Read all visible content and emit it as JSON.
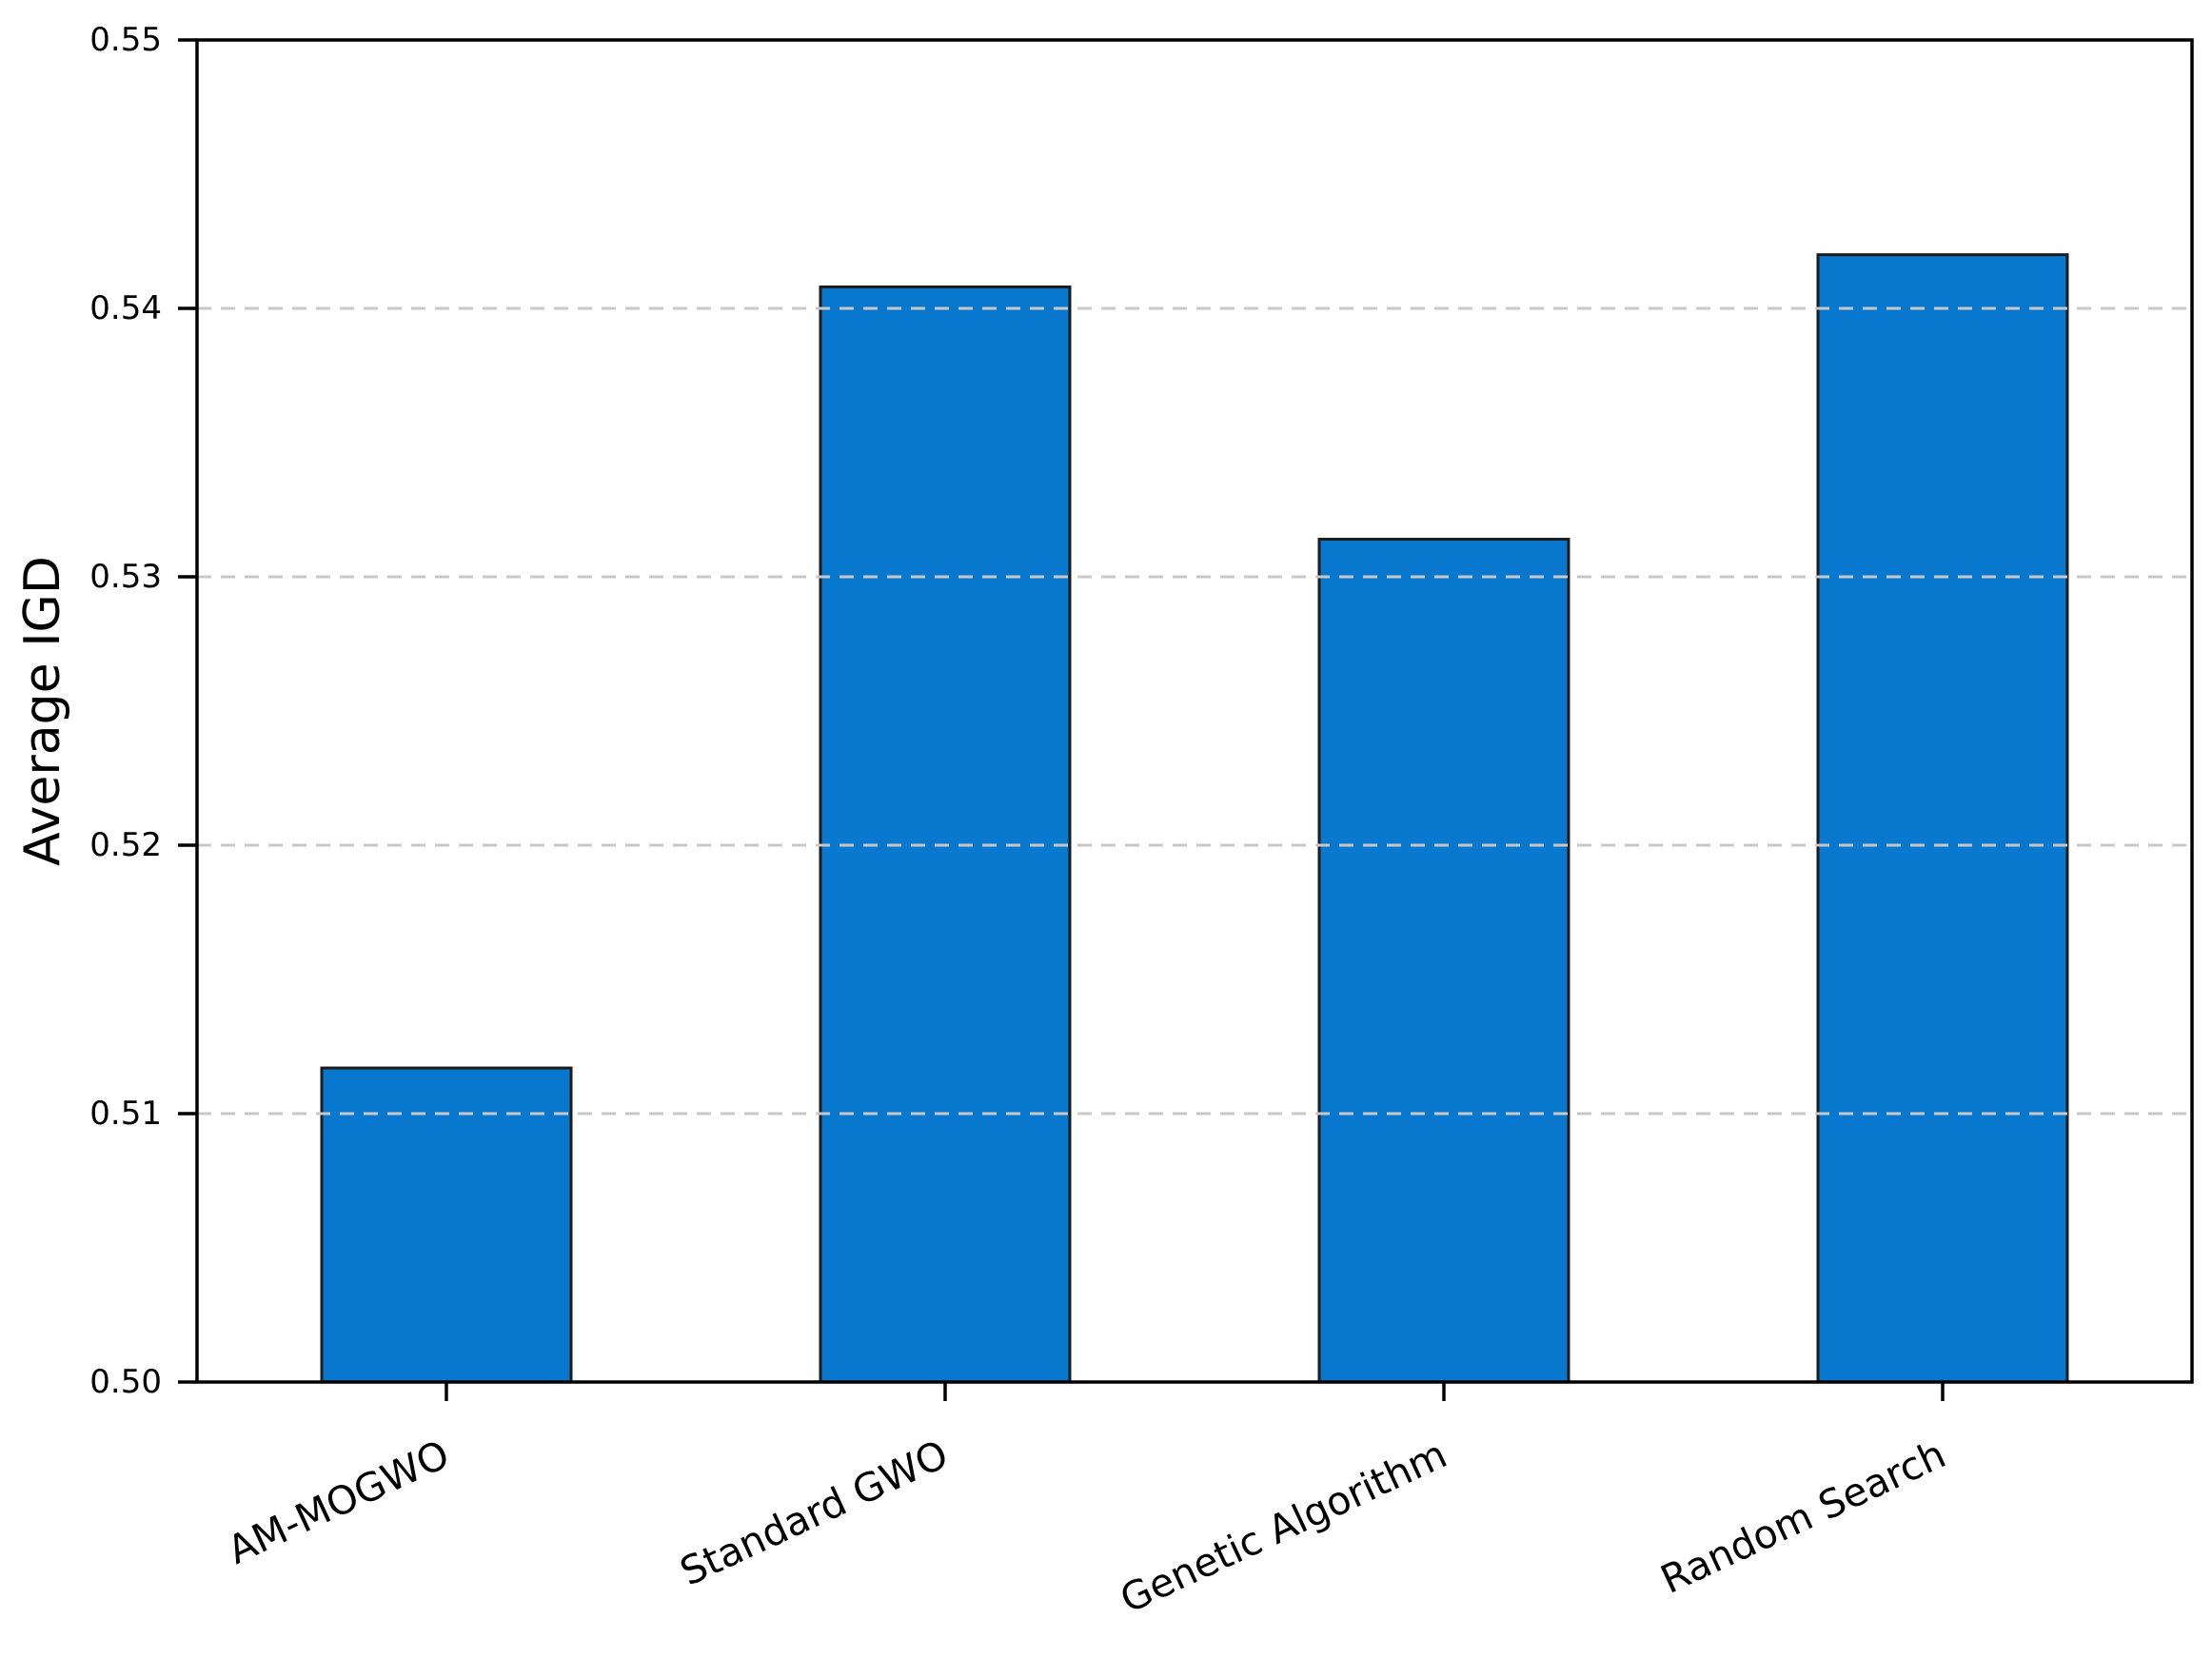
{
  "chart_data": {
    "type": "bar",
    "title": "",
    "xlabel": "",
    "ylabel": "Average IGD",
    "categories": [
      "AM-MOGWO",
      "Standard GWO",
      "Genetic Algorithm",
      "Random Search"
    ],
    "values": [
      0.5117,
      0.5408,
      0.5314,
      0.542
    ],
    "ylim": [
      0.5,
      0.55
    ],
    "yticks": [
      0.5,
      0.51,
      0.52,
      0.53,
      0.54,
      0.55
    ],
    "ytick_labels": [
      "0.50",
      "0.51",
      "0.52",
      "0.53",
      "0.54",
      "0.55"
    ],
    "xtick_label_rotation_deg": 25,
    "grid": "horizontal dashed, drawn above bars, at 0.51-0.54",
    "legend": "none",
    "colors": {
      "bar_fill": "#0878cf",
      "bar_edge": "#1c1c1c",
      "grid_line": "#c8c8c8",
      "axis": "#000000",
      "text": "#000000",
      "background": "#ffffff"
    }
  }
}
